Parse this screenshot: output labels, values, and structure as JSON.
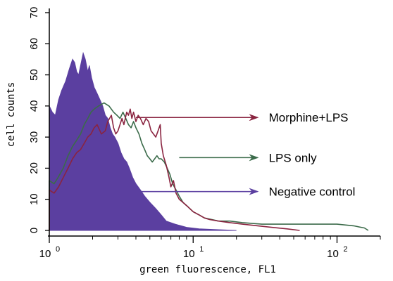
{
  "chart_data": {
    "type": "area",
    "title": "",
    "xlabel": "green fluorescence, FL1",
    "ylabel": "cell counts",
    "x_scale": "log",
    "xlim": [
      1,
      200
    ],
    "ylim": [
      0,
      70
    ],
    "x_ticks": [
      {
        "base": "10",
        "exp": "0",
        "value": 1
      },
      {
        "base": "10",
        "exp": "1",
        "value": 10
      },
      {
        "base": "10",
        "exp": "2",
        "value": 100
      }
    ],
    "y_ticks": [
      0,
      10,
      20,
      30,
      40,
      50,
      60,
      70
    ],
    "y_tick_labels": [
      "0",
      "10",
      "20",
      "30",
      "40",
      "50",
      "60",
      "70"
    ],
    "grid": false,
    "series": [
      {
        "name": "Negative control",
        "color": "#5b3fa0",
        "style": "filled",
        "points": [
          [
            1.0,
            40
          ],
          [
            1.05,
            38
          ],
          [
            1.1,
            37
          ],
          [
            1.16,
            42
          ],
          [
            1.22,
            45
          ],
          [
            1.3,
            48
          ],
          [
            1.38,
            52
          ],
          [
            1.45,
            55
          ],
          [
            1.5,
            54
          ],
          [
            1.55,
            51
          ],
          [
            1.6,
            50
          ],
          [
            1.65,
            53
          ],
          [
            1.72,
            57
          ],
          [
            1.78,
            55
          ],
          [
            1.85,
            51
          ],
          [
            1.9,
            53
          ],
          [
            1.97,
            49
          ],
          [
            2.05,
            46
          ],
          [
            2.15,
            44
          ],
          [
            2.25,
            42
          ],
          [
            2.35,
            40
          ],
          [
            2.45,
            37
          ],
          [
            2.55,
            36
          ],
          [
            2.65,
            33
          ],
          [
            2.75,
            31
          ],
          [
            2.85,
            30
          ],
          [
            3.0,
            28
          ],
          [
            3.15,
            25
          ],
          [
            3.3,
            23
          ],
          [
            3.45,
            22
          ],
          [
            3.6,
            20
          ],
          [
            3.8,
            17
          ],
          [
            4.0,
            15
          ],
          [
            4.3,
            13
          ],
          [
            4.6,
            11
          ],
          [
            5.0,
            9
          ],
          [
            5.5,
            7
          ],
          [
            6.0,
            5
          ],
          [
            6.5,
            3
          ],
          [
            7.5,
            2
          ],
          [
            9.0,
            1
          ],
          [
            11,
            0.5
          ],
          [
            14,
            0.3
          ],
          [
            20,
            0
          ]
        ]
      },
      {
        "name": "LPS only",
        "color": "#3b6b4a",
        "style": "line",
        "points": [
          [
            1.0,
            0
          ],
          [
            1.0,
            16
          ],
          [
            1.08,
            15
          ],
          [
            1.15,
            17
          ],
          [
            1.25,
            20
          ],
          [
            1.35,
            24
          ],
          [
            1.45,
            27
          ],
          [
            1.55,
            29
          ],
          [
            1.65,
            31
          ],
          [
            1.75,
            34
          ],
          [
            1.85,
            36
          ],
          [
            1.95,
            38
          ],
          [
            2.05,
            39
          ],
          [
            2.2,
            40
          ],
          [
            2.4,
            41
          ],
          [
            2.6,
            40
          ],
          [
            2.8,
            38
          ],
          [
            2.95,
            37
          ],
          [
            3.1,
            36
          ],
          [
            3.25,
            38
          ],
          [
            3.4,
            36
          ],
          [
            3.55,
            34
          ],
          [
            3.7,
            33
          ],
          [
            3.85,
            35
          ],
          [
            4.0,
            33
          ],
          [
            4.2,
            31
          ],
          [
            4.4,
            28
          ],
          [
            4.6,
            26
          ],
          [
            4.8,
            24
          ],
          [
            5.0,
            23
          ],
          [
            5.2,
            22
          ],
          [
            5.4,
            23
          ],
          [
            5.6,
            24
          ],
          [
            5.8,
            23
          ],
          [
            6.0,
            23
          ],
          [
            6.3,
            22
          ],
          [
            6.6,
            20
          ],
          [
            6.9,
            18
          ],
          [
            7.2,
            15
          ],
          [
            7.6,
            13
          ],
          [
            8.0,
            11
          ],
          [
            8.5,
            9
          ],
          [
            9.0,
            8
          ],
          [
            10,
            6
          ],
          [
            11,
            5
          ],
          [
            12,
            4
          ],
          [
            13.5,
            3.5
          ],
          [
            15,
            3
          ],
          [
            18,
            3
          ],
          [
            22,
            2.5
          ],
          [
            30,
            2
          ],
          [
            45,
            2
          ],
          [
            70,
            2
          ],
          [
            100,
            2
          ],
          [
            130,
            1.5
          ],
          [
            155,
            0.8
          ],
          [
            165,
            0
          ]
        ]
      },
      {
        "name": "Morphine+LPS",
        "color": "#8a2440",
        "style": "line",
        "points": [
          [
            1.0,
            0
          ],
          [
            1.0,
            13
          ],
          [
            1.08,
            12
          ],
          [
            1.16,
            14
          ],
          [
            1.25,
            17
          ],
          [
            1.35,
            20
          ],
          [
            1.45,
            23
          ],
          [
            1.55,
            25
          ],
          [
            1.65,
            26
          ],
          [
            1.75,
            28
          ],
          [
            1.85,
            30
          ],
          [
            1.95,
            31
          ],
          [
            2.05,
            33
          ],
          [
            2.15,
            34
          ],
          [
            2.3,
            31
          ],
          [
            2.45,
            32
          ],
          [
            2.55,
            35
          ],
          [
            2.7,
            37
          ],
          [
            2.8,
            33
          ],
          [
            2.9,
            31
          ],
          [
            3.0,
            32
          ],
          [
            3.1,
            34
          ],
          [
            3.2,
            36
          ],
          [
            3.3,
            34
          ],
          [
            3.45,
            38
          ],
          [
            3.55,
            37
          ],
          [
            3.65,
            39
          ],
          [
            3.75,
            36
          ],
          [
            3.85,
            38
          ],
          [
            4.0,
            35
          ],
          [
            4.15,
            37
          ],
          [
            4.3,
            36
          ],
          [
            4.5,
            34
          ],
          [
            4.7,
            36
          ],
          [
            4.9,
            35
          ],
          [
            5.1,
            32
          ],
          [
            5.3,
            31
          ],
          [
            5.5,
            30
          ],
          [
            5.7,
            32
          ],
          [
            5.9,
            34
          ],
          [
            6.0,
            28
          ],
          [
            6.2,
            24
          ],
          [
            6.5,
            21
          ],
          [
            6.8,
            17
          ],
          [
            7.0,
            14
          ],
          [
            7.3,
            16
          ],
          [
            7.6,
            12
          ],
          [
            8.0,
            10
          ],
          [
            8.5,
            9
          ],
          [
            9.0,
            8
          ],
          [
            10,
            6
          ],
          [
            11,
            5
          ],
          [
            12,
            4
          ],
          [
            13,
            3.5
          ],
          [
            15,
            3
          ],
          [
            18,
            2.5
          ],
          [
            22,
            2
          ],
          [
            28,
            1.5
          ],
          [
            35,
            1
          ],
          [
            45,
            0.5
          ],
          [
            55,
            0
          ]
        ]
      }
    ],
    "annotations": [
      {
        "text": "Morphine+LPS",
        "color": "#8a2440",
        "arrow_from": [
          4.0,
          36.3
        ],
        "arrow_to": [
          28,
          36.3
        ]
      },
      {
        "text": "LPS only",
        "color": "#3b6b4a",
        "arrow_from": [
          8.0,
          23.4
        ],
        "arrow_to": [
          28,
          23.4
        ]
      },
      {
        "text": "Negative control",
        "color": "#5b3fa0",
        "arrow_from": [
          4.3,
          12.5
        ],
        "arrow_to": [
          28,
          12.5
        ]
      }
    ]
  }
}
